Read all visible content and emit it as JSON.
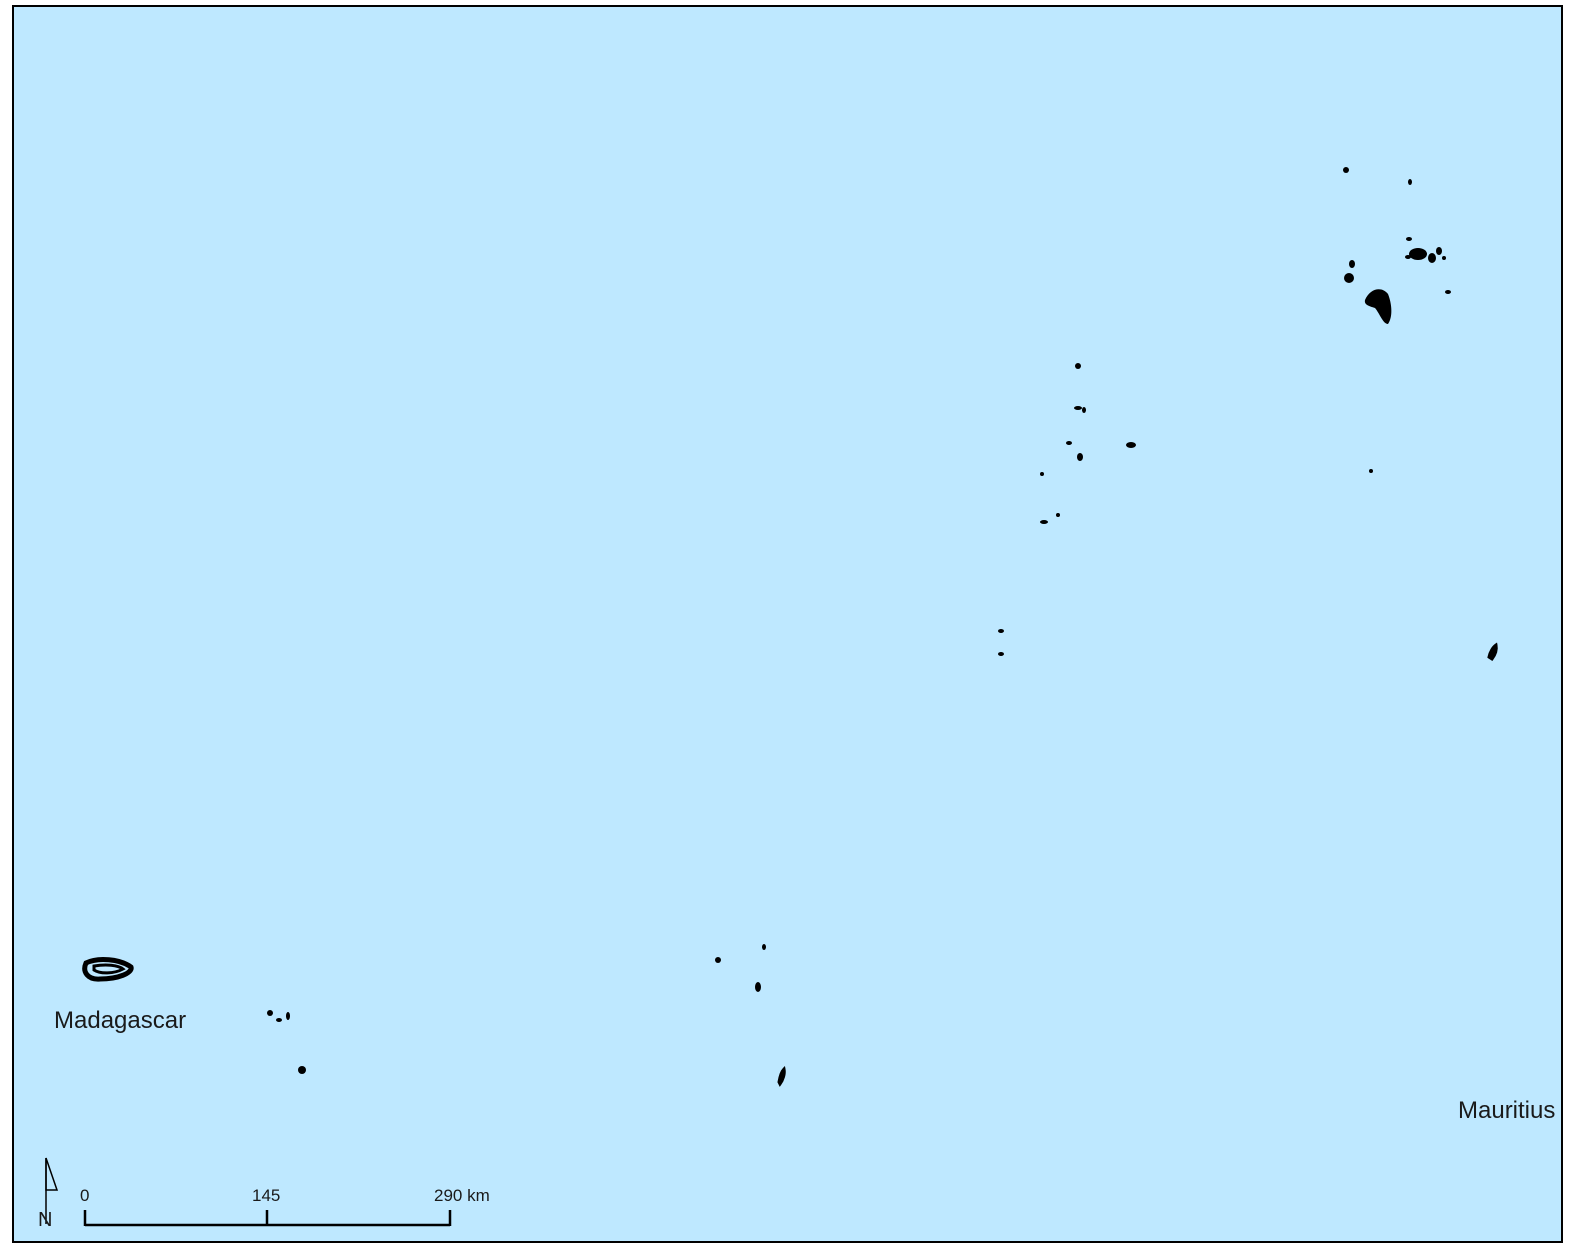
{
  "map": {
    "background_color": "#bee8ff",
    "land_color": "#000000",
    "labels": {
      "madagascar": "Madagascar",
      "mauritius": "Mauritius"
    },
    "scale_bar": {
      "tick_0": "0",
      "tick_1": "145",
      "tick_2": "290 km"
    },
    "north_arrow": {
      "letter": "N",
      "icon": "north-arrow-icon"
    }
  }
}
